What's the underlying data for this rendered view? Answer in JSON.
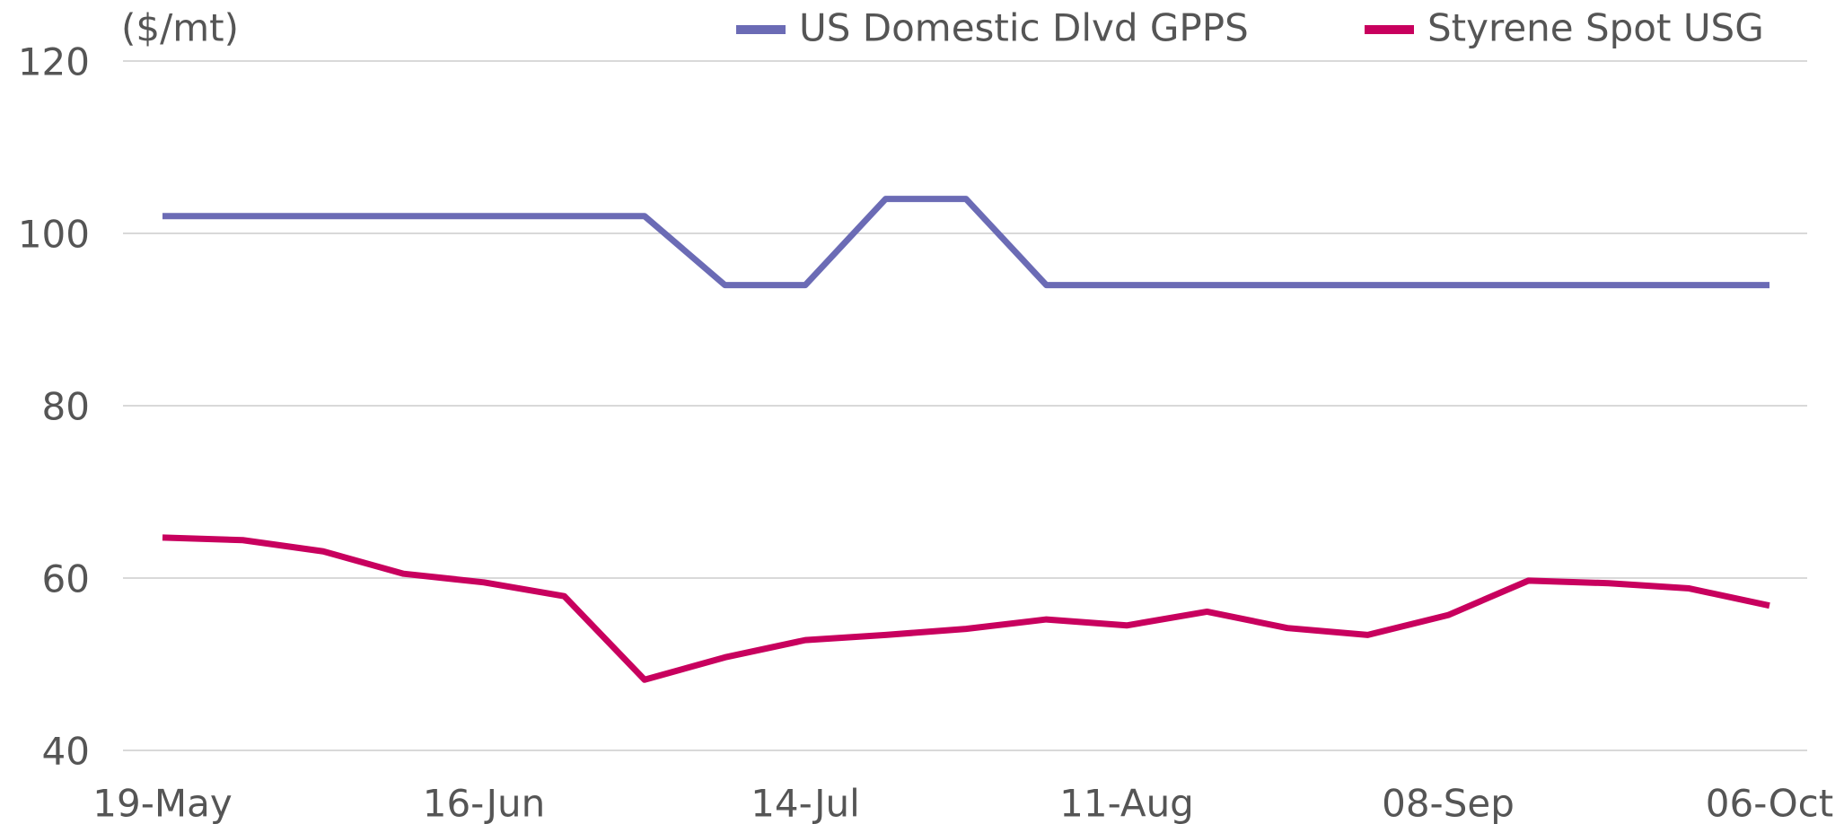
{
  "chart_data": {
    "type": "line",
    "y_label": "($/mt)",
    "categories": [
      "19-May",
      null,
      null,
      null,
      "16-Jun",
      null,
      null,
      null,
      "14-Jul",
      null,
      null,
      null,
      "11-Aug",
      null,
      null,
      null,
      "08-Sep",
      null,
      null,
      null,
      "06-Oct"
    ],
    "series": [
      {
        "name": "US Domestic Dlvd GPPS",
        "color": "#6b6bb5",
        "values": [
          102,
          102,
          102,
          102,
          102,
          102,
          102,
          94,
          94,
          104,
          104,
          94,
          94,
          94,
          94,
          94,
          94,
          94,
          94,
          94,
          94
        ]
      },
      {
        "name": "Styrene Spot USG",
        "color": "#c8005e",
        "values": [
          64.7,
          64.4,
          63.1,
          60.5,
          59.5,
          57.9,
          48.2,
          50.8,
          52.8,
          53.4,
          54.1,
          55.2,
          54.5,
          56.1,
          54.2,
          53.4,
          55.7,
          59.7,
          59.4,
          58.8,
          56.8
        ]
      }
    ],
    "ylim": [
      40,
      120
    ],
    "yticks": [
      40,
      60,
      80,
      100,
      120
    ],
    "grid": true,
    "legend": "top"
  }
}
